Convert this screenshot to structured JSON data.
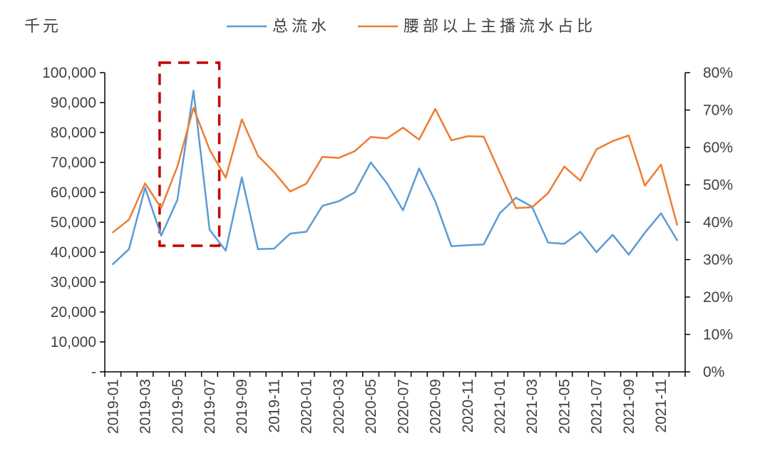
{
  "chart_data": {
    "type": "line",
    "ylabel_left_unit": "千元",
    "legend": {
      "placement": "top-center"
    },
    "categories": [
      "2019-01",
      "2019-02",
      "2019-03",
      "2019-04",
      "2019-05",
      "2019-06",
      "2019-07",
      "2019-08",
      "2019-09",
      "2019-10",
      "2019-11",
      "2019-12",
      "2020-01",
      "2020-02",
      "2020-03",
      "2020-04",
      "2020-05",
      "2020-06",
      "2020-07",
      "2020-08",
      "2020-09",
      "2020-10",
      "2020-11",
      "2020-12",
      "2021-01",
      "2021-02",
      "2021-03",
      "2021-04",
      "2021-05",
      "2021-06",
      "2021-07",
      "2021-08",
      "2021-09",
      "2021-10",
      "2021-11",
      "2021-12"
    ],
    "x_tick_labels": [
      "2019-01",
      "2019-03",
      "2019-05",
      "2019-07",
      "2019-09",
      "2019-11",
      "2020-01",
      "2020-03",
      "2020-05",
      "2020-07",
      "2020-09",
      "2020-11",
      "2021-01",
      "2021-03",
      "2021-05",
      "2021-07",
      "2021-09",
      "2021-11"
    ],
    "left_axis": {
      "ylim": [
        0,
        100000
      ],
      "ticks": [
        0,
        10000,
        20000,
        30000,
        40000,
        50000,
        60000,
        70000,
        80000,
        90000,
        100000
      ],
      "tick_labels": [
        "-",
        "10,000",
        "20,000",
        "30,000",
        "40,000",
        "50,000",
        "60,000",
        "70,000",
        "80,000",
        "90,000",
        "100,000"
      ]
    },
    "right_axis": {
      "ylim": [
        0,
        80
      ],
      "ticks": [
        0,
        10,
        20,
        30,
        40,
        50,
        60,
        70,
        80
      ],
      "tick_labels": [
        "0%",
        "10%",
        "20%",
        "30%",
        "40%",
        "50%",
        "60%",
        "70%",
        "80%"
      ]
    },
    "series": [
      {
        "name": "总流水",
        "axis": "left",
        "color": "#5b9bd5",
        "values": [
          36000,
          41000,
          61500,
          45500,
          57500,
          94000,
          47500,
          40500,
          65000,
          41000,
          41200,
          46200,
          46800,
          55500,
          57000,
          60000,
          70000,
          63000,
          54000,
          68000,
          57000,
          42000,
          42300,
          42600,
          53000,
          58200,
          55200,
          43200,
          42800,
          46800,
          40000,
          45800,
          39200,
          46500,
          53000,
          44000
        ]
      },
      {
        "name": "腰部以上主播流水占比",
        "axis": "right",
        "color": "#ed7d31",
        "values": [
          37.3,
          40.7,
          50.4,
          43.8,
          54.9,
          70.6,
          59.4,
          51.9,
          67.5,
          57.8,
          53.4,
          48.2,
          50.3,
          57.5,
          57.2,
          59.0,
          62.8,
          62.4,
          65.3,
          62.1,
          70.3,
          61.9,
          63.0,
          62.9,
          53.3,
          43.8,
          44.0,
          47.8,
          54.9,
          51.1,
          59.5,
          61.7,
          63.2,
          49.8,
          55.4,
          39.3
        ]
      }
    ],
    "annotation": {
      "type": "dashed-box",
      "color": "#c00000",
      "x_from": "2019-04",
      "x_to": "2019-07"
    }
  }
}
